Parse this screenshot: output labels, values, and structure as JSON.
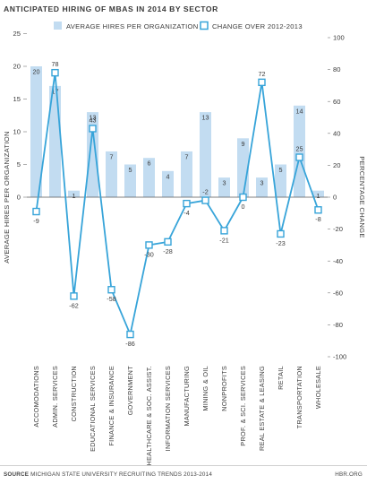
{
  "title": "ANTICIPATED HIRING OF MBAS IN 2014 BY SECTOR",
  "source_label": "SOURCE",
  "source_text": "MICHIGAN STATE UNIVERSITY RECRUITING TRENDS 2013-2014",
  "credit": "HBR.ORG",
  "colors": {
    "bar": "#c2dcf1",
    "line": "#37a4d9",
    "text": "#3a3a3a",
    "axis": "#555555"
  },
  "chart_data": {
    "type": "bar+line",
    "categories": [
      "ACCOMODATIONS",
      "ADMIN. SERVICES",
      "CONSTRUCTION",
      "EDUCATIONAL SERVICES",
      "FINANCE & INSURANCE",
      "GOVERNMENT",
      "HEALTHCARE & SOC. ASSIST.",
      "INFORMATION SERVICES",
      "MANUFACTURING",
      "MINING & OIL",
      "NONPROFITS",
      "PROF. & SCI. SERVICES",
      "REAL ESTATE & LEASING",
      "RETAIL",
      "TRANSPORTATION",
      "WHOLESALE"
    ],
    "series": [
      {
        "name": "AVERAGE HIRES PER ORGANIZATION",
        "type": "bar",
        "axis": "left",
        "values": [
          20,
          17,
          1,
          13,
          7,
          5,
          6,
          4,
          7,
          13,
          3,
          9,
          3,
          5,
          14,
          1
        ]
      },
      {
        "name": "CHANGE OVER 2012-2013",
        "type": "line",
        "axis": "right",
        "values": [
          -9,
          78,
          -62,
          43,
          -58,
          -86,
          -30,
          -28,
          -4,
          -2,
          -21,
          0,
          72,
          -23,
          25,
          -8
        ]
      }
    ],
    "y_left": {
      "label": "AVERAGE HIRES PER ORGANIZATION",
      "ticks": [
        "0",
        "5",
        "10",
        "15",
        "20",
        "25"
      ],
      "range": [
        -29.1,
        25
      ]
    },
    "y_right": {
      "label": "PERCENTAGE CHANGE",
      "ticks": [
        "-100",
        "-80",
        "-60",
        "-40",
        "-20",
        "0",
        "20",
        "40",
        "60",
        "80",
        "100"
      ],
      "range": [
        -100,
        100
      ]
    },
    "legend_position": "top",
    "grid": false
  }
}
